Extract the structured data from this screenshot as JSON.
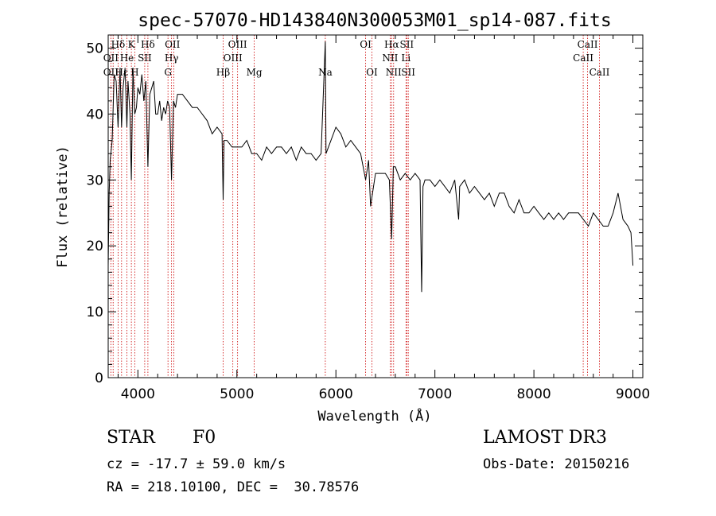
{
  "chart_data": {
    "type": "line",
    "title": "spec-57070-HD143840N300053M01_sp14-087.fits",
    "xlabel": "Wavelength (Å)",
    "ylabel": "Flux (relative)",
    "xlim": [
      3700,
      9100
    ],
    "ylim": [
      0,
      52
    ],
    "xticks": [
      4000,
      5000,
      6000,
      7000,
      8000,
      9000
    ],
    "yticks": [
      0,
      10,
      20,
      30,
      40,
      50
    ],
    "grid": false,
    "line_color": "#000000",
    "marker_color": "#cc0000",
    "series": [
      {
        "x": [
          3700,
          3710,
          3720,
          3740,
          3760,
          3780,
          3800,
          3820,
          3835,
          3850,
          3870,
          3889,
          3900,
          3920,
          3934,
          3950,
          3968,
          3985,
          4000,
          4020,
          4040,
          4060,
          4080,
          4101,
          4120,
          4140,
          4160,
          4180,
          4200,
          4220,
          4240,
          4260,
          4280,
          4300,
          4320,
          4340,
          4360,
          4380,
          4400,
          4450,
          4500,
          4550,
          4600,
          4650,
          4700,
          4750,
          4800,
          4850,
          4861,
          4870,
          4900,
          4950,
          5000,
          5050,
          5100,
          5150,
          5200,
          5250,
          5300,
          5350,
          5400,
          5450,
          5500,
          5550,
          5600,
          5650,
          5700,
          5750,
          5800,
          5850,
          5893,
          5900,
          5950,
          6000,
          6050,
          6100,
          6150,
          6200,
          6250,
          6300,
          6330,
          6350,
          6400,
          6450,
          6500,
          6540,
          6563,
          6580,
          6600,
          6650,
          6700,
          6750,
          6800,
          6850,
          6866,
          6880,
          6900,
          6950,
          7000,
          7050,
          7100,
          7150,
          7200,
          7240,
          7250,
          7300,
          7350,
          7400,
          7450,
          7500,
          7550,
          7600,
          7650,
          7700,
          7750,
          7800,
          7850,
          7900,
          7950,
          8000,
          8050,
          8100,
          8150,
          8200,
          8250,
          8300,
          8350,
          8400,
          8450,
          8500,
          8550,
          8600,
          8650,
          8700,
          8750,
          8800,
          8850,
          8900,
          8950,
          8980,
          9000
        ],
        "y": [
          17,
          28,
          33,
          36,
          46,
          45,
          38,
          47,
          38,
          44,
          47,
          38,
          45,
          40,
          30,
          47,
          40,
          41,
          44,
          43,
          46,
          42,
          45,
          32,
          43,
          44,
          45,
          40,
          40,
          42,
          39,
          41,
          40,
          42,
          41,
          30,
          42,
          41,
          43,
          43,
          42,
          41,
          41,
          40,
          39,
          37,
          38,
          37,
          27,
          36,
          36,
          35,
          35,
          35,
          36,
          34,
          34,
          33,
          35,
          34,
          35,
          35,
          34,
          35,
          33,
          35,
          34,
          34,
          33,
          34,
          51,
          34,
          36,
          38,
          37,
          35,
          36,
          35,
          34,
          30,
          33,
          26,
          31,
          31,
          31,
          30,
          21,
          32,
          32,
          30,
          31,
          30,
          31,
          30,
          13,
          29,
          30,
          30,
          29,
          30,
          29,
          28,
          30,
          24,
          29,
          30,
          28,
          29,
          28,
          27,
          28,
          26,
          28,
          28,
          26,
          25,
          27,
          25,
          25,
          26,
          25,
          24,
          25,
          24,
          25,
          24,
          25,
          25,
          25,
          24,
          23,
          25,
          24,
          23,
          23,
          25,
          28,
          24,
          23,
          22,
          17
        ]
      }
    ],
    "lines_top": [
      {
        "label": "Hδ",
        "x": 3800,
        "row": 0
      },
      {
        "label": "K",
        "x": 3934,
        "row": 0
      },
      {
        "label": "Hδ",
        "x": 4101,
        "row": 0
      },
      {
        "label": "OII",
        "x": 4349,
        "row": 0
      },
      {
        "label": "OIII",
        "x": 5007,
        "row": 0
      },
      {
        "label": "OI",
        "x": 6300,
        "row": 0
      },
      {
        "label": "Hα",
        "x": 6563,
        "row": 0
      },
      {
        "label": "SII",
        "x": 6716,
        "row": 0
      },
      {
        "label": "CaII",
        "x": 8542,
        "row": 0
      },
      {
        "label": "OII",
        "x": 3727,
        "row": 1
      },
      {
        "label": "He",
        "x": 3889,
        "row": 1
      },
      {
        "label": "SII",
        "x": 4069,
        "row": 1
      },
      {
        "label": "Hγ",
        "x": 4340,
        "row": 1
      },
      {
        "label": "OIII",
        "x": 4959,
        "row": 1
      },
      {
        "label": "NII",
        "x": 6548,
        "row": 1
      },
      {
        "label": "Li",
        "x": 6708,
        "row": 1
      },
      {
        "label": "CaII",
        "x": 8498,
        "row": 1
      }
    ],
    "lines_bottom": [
      {
        "label": "OII",
        "x": 3727
      },
      {
        "label": "Hε",
        "x": 3835
      },
      {
        "label": "H",
        "x": 3968
      },
      {
        "label": "G",
        "x": 4304
      },
      {
        "label": "Hβ",
        "x": 4861
      },
      {
        "label": "Mg",
        "x": 5175
      },
      {
        "label": "Na",
        "x": 5893
      },
      {
        "label": "OI",
        "x": 6364
      },
      {
        "label": "NII",
        "x": 6583
      },
      {
        "label": "SII",
        "x": 6731
      },
      {
        "label": "CaII",
        "x": 8662
      }
    ],
    "marker_x": [
      3727,
      3750,
      3800,
      3835,
      3889,
      3934,
      3968,
      4069,
      4101,
      4304,
      4340,
      4363,
      4861,
      4959,
      5007,
      5175,
      5893,
      6300,
      6364,
      6548,
      6563,
      6583,
      6708,
      6716,
      6731,
      8498,
      8542,
      8662
    ]
  },
  "info": {
    "object_type": "STAR",
    "object_class": "F0",
    "survey": "LAMOST DR3",
    "redshift": "cz = -17.7 ± 59.0 km/s",
    "obs_date": "Obs-Date: 20150216",
    "coordinates": "RA = 218.10100, DEC =  30.78576"
  }
}
